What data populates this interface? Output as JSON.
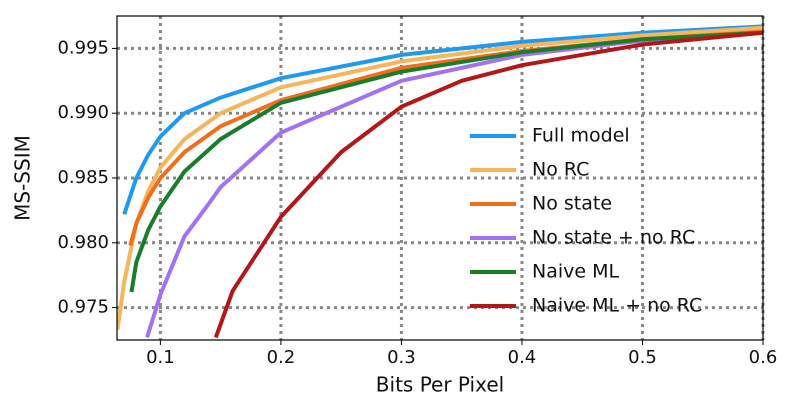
{
  "chart_data": {
    "type": "line",
    "x_label": "Bits Per Pixel",
    "y_label": "MS-SSIM",
    "xlim": [
      0.064,
      0.6
    ],
    "ylim": [
      0.9725,
      0.9975
    ],
    "xticks": [
      0.1,
      0.2,
      0.3,
      0.4,
      0.5,
      0.6
    ],
    "yticks": [
      0.975,
      {
        "value": 0.98,
        "label": "0.980"
      },
      0.985,
      {
        "value": 0.99,
        "label": "0.990"
      },
      0.995
    ],
    "grid": true,
    "legend": "lower right",
    "series": [
      {
        "name": "Full model",
        "color": "#1e9bf0",
        "x": [
          0.07,
          0.08,
          0.09,
          0.1,
          0.12,
          0.15,
          0.2,
          0.3,
          0.4,
          0.5,
          0.6
        ],
        "values": [
          0.9822,
          0.985,
          0.9868,
          0.9882,
          0.99,
          0.9912,
          0.9927,
          0.9945,
          0.9955,
          0.9962,
          0.9967
        ]
      },
      {
        "name": "No RC",
        "color": "#f7b55c",
        "x": [
          0.0643,
          0.07,
          0.08,
          0.09,
          0.1,
          0.12,
          0.15,
          0.2,
          0.3,
          0.4,
          0.5,
          0.6
        ],
        "values": [
          0.9733,
          0.977,
          0.9815,
          0.984,
          0.9858,
          0.988,
          0.99,
          0.992,
          0.994,
          0.9952,
          0.996,
          0.9966
        ]
      },
      {
        "name": "No state",
        "color": "#f26e1f",
        "x": [
          0.075,
          0.08,
          0.09,
          0.1,
          0.12,
          0.15,
          0.2,
          0.3,
          0.4,
          0.5,
          0.6
        ],
        "values": [
          0.9798,
          0.9815,
          0.9835,
          0.985,
          0.987,
          0.989,
          0.991,
          0.9935,
          0.9948,
          0.9957,
          0.9963
        ]
      },
      {
        "name": "No state + no RC",
        "color": "#a372f2",
        "x": [
          0.089,
          0.1,
          0.12,
          0.14,
          0.15,
          0.2,
          0.25,
          0.3,
          0.4,
          0.5,
          0.6
        ],
        "values": [
          0.9727,
          0.976,
          0.9805,
          0.983,
          0.9843,
          0.9885,
          0.9905,
          0.9925,
          0.9945,
          0.9956,
          0.9962
        ]
      },
      {
        "name": "Naive ML",
        "color": "#1a7d2c",
        "x": [
          0.076,
          0.08,
          0.09,
          0.1,
          0.12,
          0.15,
          0.2,
          0.3,
          0.4,
          0.5,
          0.6
        ],
        "values": [
          0.9762,
          0.9785,
          0.981,
          0.9828,
          0.9855,
          0.988,
          0.9908,
          0.9932,
          0.9947,
          0.9957,
          0.9962
        ]
      },
      {
        "name": "Naive ML + no RC",
        "color": "#b3171a",
        "x": [
          0.146,
          0.16,
          0.2,
          0.25,
          0.3,
          0.35,
          0.4,
          0.5,
          0.6
        ],
        "values": [
          0.9727,
          0.9763,
          0.982,
          0.987,
          0.9905,
          0.9925,
          0.9937,
          0.9953,
          0.9962
        ]
      }
    ]
  }
}
